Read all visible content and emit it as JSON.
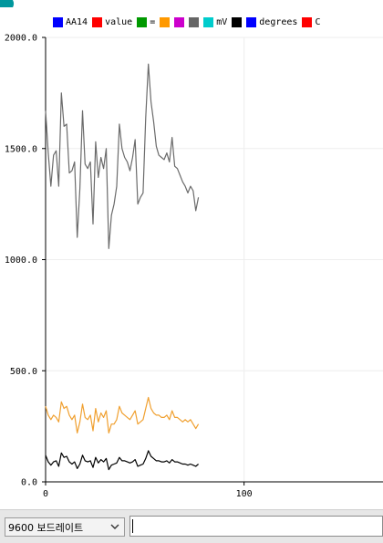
{
  "legend": [
    {
      "label": "AA14",
      "color": "#0000ff"
    },
    {
      "label": "value",
      "color": "#ff0000"
    },
    {
      "label": "=",
      "color": "#009900"
    },
    {
      "label": "",
      "color": "#ff9900"
    },
    {
      "label": "",
      "color": "#cc00cc"
    },
    {
      "label": "",
      "color": "#666666"
    },
    {
      "label": "mV",
      "color": "#00cccc"
    },
    {
      "label": "",
      "color": "#000000"
    },
    {
      "label": "degrees",
      "color": "#0000ff"
    },
    {
      "label": "C",
      "color": "#ff0000"
    }
  ],
  "chart_data": {
    "type": "line",
    "xlim": [
      0,
      170
    ],
    "ylim": [
      0,
      2000
    ],
    "x_ticks": [
      "0",
      "100"
    ],
    "y_ticks": [
      "0.0",
      "500.0",
      "1000.0",
      "1500.0",
      "2000.0"
    ],
    "y_tick_values": [
      0,
      500,
      1000,
      1500,
      2000
    ],
    "x_tick_values": [
      0,
      100
    ],
    "series": [
      {
        "name": "gray",
        "color": "#6b6b6b",
        "values": [
          1670,
          1480,
          1330,
          1470,
          1490,
          1330,
          1750,
          1600,
          1610,
          1390,
          1400,
          1440,
          1100,
          1320,
          1670,
          1430,
          1410,
          1440,
          1160,
          1530,
          1370,
          1460,
          1410,
          1500,
          1050,
          1200,
          1250,
          1330,
          1610,
          1500,
          1460,
          1440,
          1400,
          1460,
          1540,
          1250,
          1280,
          1300,
          1640,
          1880,
          1710,
          1620,
          1510,
          1470,
          1460,
          1450,
          1480,
          1440,
          1550,
          1420,
          1410,
          1380,
          1350,
          1330,
          1300,
          1330,
          1310,
          1220,
          1280
        ]
      },
      {
        "name": "orange",
        "color": "#f0a030",
        "values": [
          340,
          300,
          280,
          300,
          290,
          270,
          360,
          330,
          340,
          300,
          280,
          300,
          220,
          270,
          350,
          290,
          280,
          300,
          230,
          330,
          270,
          310,
          290,
          320,
          220,
          260,
          260,
          280,
          340,
          310,
          300,
          290,
          280,
          300,
          320,
          260,
          270,
          280,
          330,
          380,
          330,
          310,
          300,
          300,
          290,
          290,
          300,
          280,
          320,
          290,
          290,
          280,
          270,
          280,
          270,
          280,
          260,
          240,
          260
        ]
      },
      {
        "name": "black",
        "color": "#000000",
        "values": [
          120,
          90,
          75,
          90,
          95,
          70,
          130,
          110,
          115,
          90,
          80,
          90,
          60,
          80,
          120,
          95,
          90,
          95,
          65,
          110,
          85,
          100,
          90,
          105,
          55,
          75,
          80,
          85,
          110,
          95,
          95,
          90,
          85,
          90,
          100,
          70,
          75,
          80,
          105,
          140,
          115,
          105,
          95,
          95,
          90,
          90,
          95,
          85,
          100,
          90,
          90,
          85,
          80,
          80,
          75,
          80,
          75,
          70,
          80
        ]
      }
    ]
  },
  "baud_rate": "9600 보드레이트",
  "send_input": {
    "value": ""
  }
}
